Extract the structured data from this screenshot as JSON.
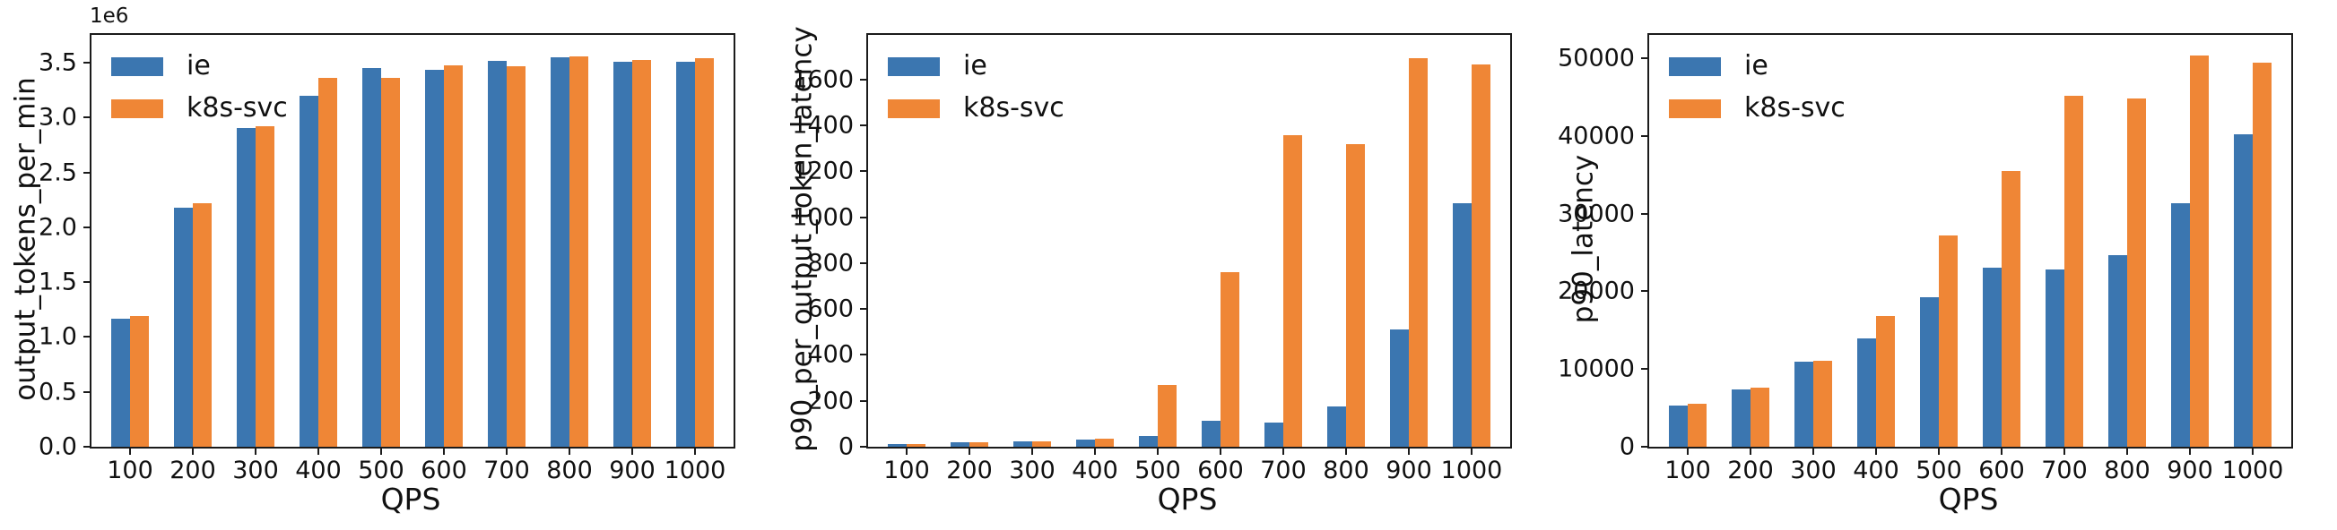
{
  "figure": {
    "background": "#ffffff",
    "series_colors": {
      "ie": "#3b76b0",
      "k8s-svc": "#ef8636"
    }
  },
  "chart_data": [
    {
      "type": "bar",
      "title": "",
      "ylabel": "output_tokens_per_min",
      "xlabel": "QPS",
      "offset_text": "1e6",
      "grid": false,
      "legend_position": "upper left",
      "categories": [
        "100",
        "200",
        "300",
        "400",
        "500",
        "600",
        "700",
        "800",
        "900",
        "1000"
      ],
      "ylim": [
        0,
        3755000
      ],
      "yticks": {
        "values": [
          0,
          500000,
          1000000,
          1500000,
          2000000,
          2500000,
          3000000,
          3500000
        ],
        "labels": [
          "0.0",
          "0.5",
          "1.0",
          "1.5",
          "2.0",
          "2.5",
          "3.0",
          "3.5"
        ]
      },
      "series": [
        {
          "name": "ie",
          "color": "#3b76b0",
          "values": [
            1170000,
            2180000,
            2910000,
            3200000,
            3450000,
            3440000,
            3520000,
            3550000,
            3510000,
            3510000
          ]
        },
        {
          "name": "k8s-svc",
          "color": "#ef8636",
          "values": [
            1190000,
            2220000,
            2920000,
            3360000,
            3360000,
            3480000,
            3470000,
            3560000,
            3530000,
            3540000
          ]
        }
      ]
    },
    {
      "type": "bar",
      "title": "",
      "ylabel": "p90_per_output_token_latency",
      "xlabel": "QPS",
      "offset_text": "",
      "grid": false,
      "legend_position": "upper left",
      "categories": [
        "100",
        "200",
        "300",
        "400",
        "500",
        "600",
        "700",
        "800",
        "900",
        "1000"
      ],
      "ylim": [
        0,
        1795
      ],
      "yticks": {
        "values": [
          0,
          200,
          400,
          600,
          800,
          1000,
          1200,
          1400,
          1600
        ],
        "labels": [
          "0",
          "200",
          "400",
          "600",
          "800",
          "1000",
          "1200",
          "1400",
          "1600"
        ]
      },
      "series": [
        {
          "name": "ie",
          "color": "#3b76b0",
          "values": [
            10,
            18,
            25,
            33,
            46,
            115,
            105,
            175,
            510,
            1060
          ]
        },
        {
          "name": "k8s-svc",
          "color": "#ef8636",
          "values": [
            10,
            18,
            24,
            37,
            268,
            762,
            1358,
            1318,
            1695,
            1668
          ]
        }
      ]
    },
    {
      "type": "bar",
      "title": "",
      "ylabel": "p90_latency",
      "xlabel": "QPS",
      "offset_text": "",
      "grid": false,
      "legend_position": "upper left",
      "categories": [
        "100",
        "200",
        "300",
        "400",
        "500",
        "600",
        "700",
        "800",
        "900",
        "1000"
      ],
      "ylim": [
        0,
        53000
      ],
      "yticks": {
        "values": [
          0,
          10000,
          20000,
          30000,
          40000,
          50000
        ],
        "labels": [
          "0",
          "10000",
          "20000",
          "30000",
          "40000",
          "50000"
        ]
      },
      "series": [
        {
          "name": "ie",
          "color": "#3b76b0",
          "values": [
            5300,
            7400,
            10900,
            13900,
            19200,
            23000,
            22800,
            24700,
            31300,
            40200
          ]
        },
        {
          "name": "k8s-svc",
          "color": "#ef8636",
          "values": [
            5500,
            7600,
            11100,
            16800,
            27200,
            35500,
            45200,
            44800,
            50300,
            49400
          ]
        }
      ]
    }
  ]
}
